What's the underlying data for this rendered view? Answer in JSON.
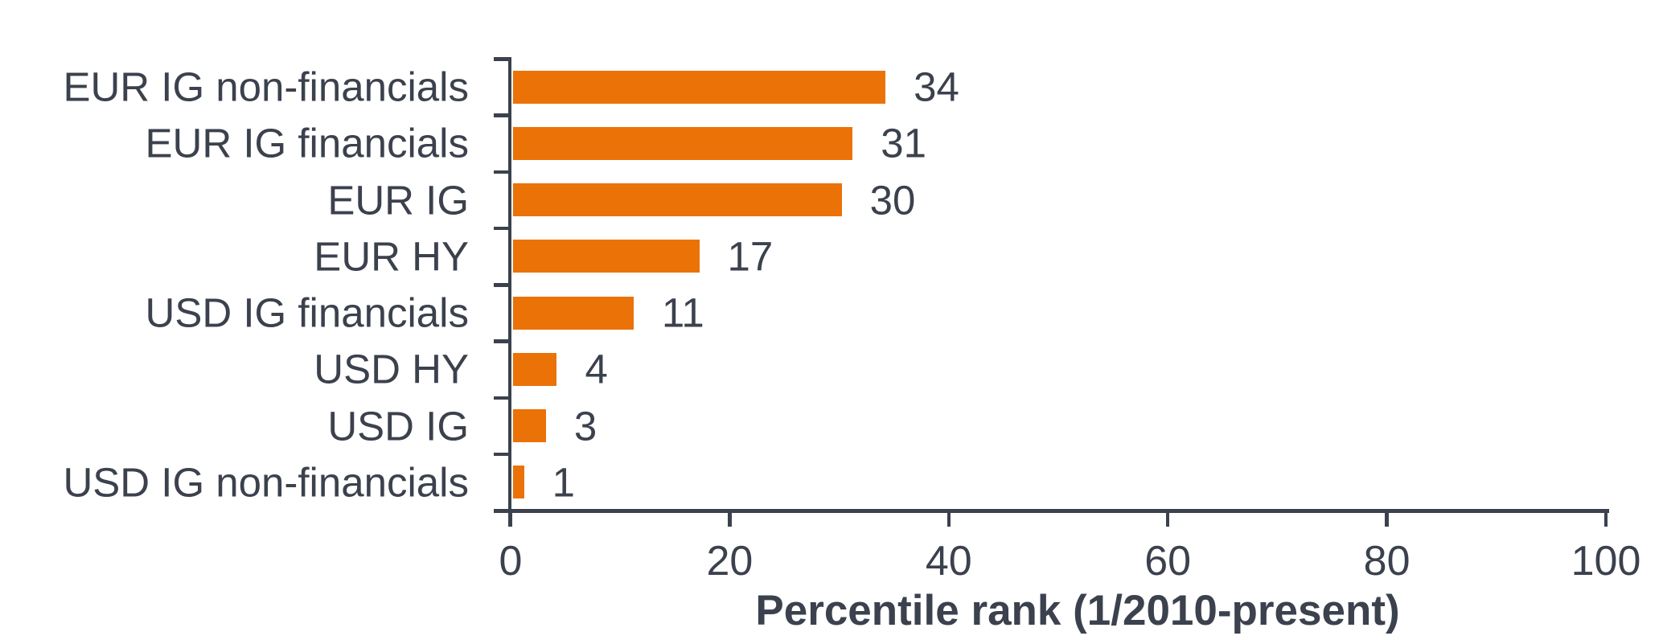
{
  "chart_data": {
    "type": "bar",
    "orientation": "horizontal",
    "categories": [
      "EUR IG non-financials",
      "EUR IG financials",
      "EUR IG",
      "EUR HY",
      "USD IG financials",
      "USD HY",
      "USD IG",
      "USD IG non-financials"
    ],
    "values": [
      34,
      31,
      30,
      17,
      11,
      4,
      3,
      1
    ],
    "value_labels": [
      "34",
      "31",
      "30",
      "17",
      "11",
      "4",
      "3",
      "1"
    ],
    "title": "",
    "xlabel": "Percentile rank (1/2010-present)",
    "ylabel": "",
    "xlim": [
      0,
      100
    ],
    "x_ticks": [
      0,
      20,
      40,
      60,
      80,
      100
    ],
    "x_tick_labels": [
      "0",
      "20",
      "40",
      "60",
      "80",
      "100"
    ],
    "grid": false,
    "legend": false,
    "bar_color": "#EA7207",
    "axis_color": "#3B414D",
    "text_color": "#3B414D"
  }
}
